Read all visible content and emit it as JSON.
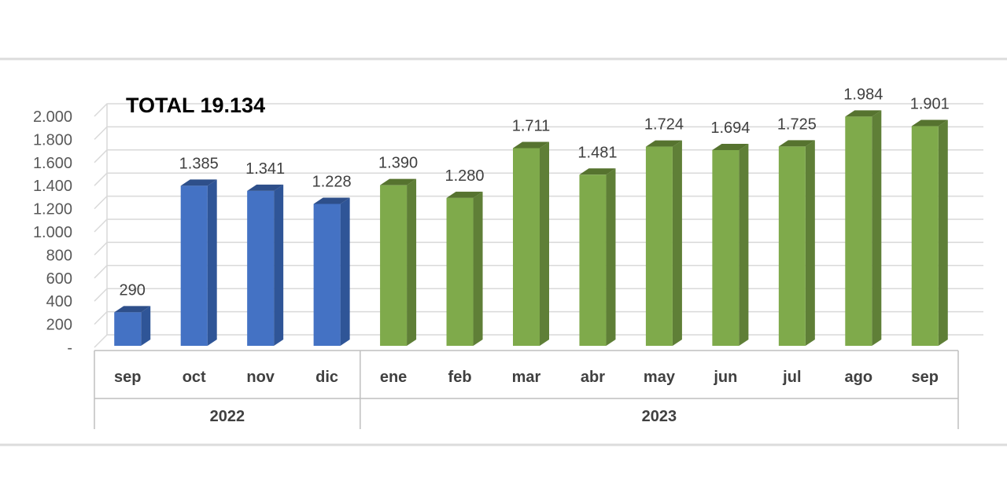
{
  "chart_data": {
    "type": "bar",
    "title": "TOTAL 19.134",
    "categories": [
      "sep",
      "oct",
      "nov",
      "dic",
      "ene",
      "feb",
      "mar",
      "abr",
      "may",
      "jun",
      "jul",
      "ago",
      "sep"
    ],
    "groups": [
      {
        "label": "2022",
        "categories": [
          "sep",
          "oct",
          "nov",
          "dic"
        ]
      },
      {
        "label": "2023",
        "categories": [
          "ene",
          "feb",
          "mar",
          "abr",
          "may",
          "jun",
          "jul",
          "ago",
          "sep"
        ]
      }
    ],
    "values": [
      290,
      1385,
      1341,
      1228,
      1390,
      1280,
      1711,
      1481,
      1724,
      1694,
      1725,
      1984,
      1901
    ],
    "data_labels": [
      "290",
      "1.385",
      "1.341",
      "1.228",
      "1.390",
      "1.280",
      "1.711",
      "1.481",
      "1.724",
      "1.694",
      "1.725",
      "1.984",
      "1.901"
    ],
    "ylim": [
      0,
      2000
    ],
    "yticks": [
      "-",
      "200",
      "400",
      "600",
      "800",
      "1.000",
      "1.200",
      "1.400",
      "1.600",
      "1.800",
      "2.000"
    ],
    "grid": true,
    "colors": {
      "2022": {
        "front": "#4472c4",
        "side": "#2f5597",
        "top": "#2e4f8a"
      },
      "2023": {
        "front": "#7faa4b",
        "side": "#5f7f37",
        "top": "#56732f"
      },
      "grid": "#d9d9d9",
      "axis": "#bfbfbf"
    }
  }
}
